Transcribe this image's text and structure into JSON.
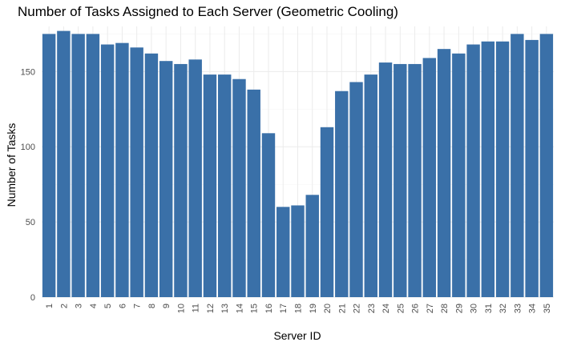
{
  "chart_data": {
    "type": "bar",
    "title": "Number of Tasks Assigned to Each Server (Geometric Cooling)",
    "xlabel": "Server ID",
    "ylabel": "Number of Tasks",
    "categories": [
      "1",
      "2",
      "3",
      "4",
      "5",
      "6",
      "7",
      "8",
      "9",
      "10",
      "11",
      "12",
      "13",
      "14",
      "15",
      "16",
      "17",
      "18",
      "19",
      "20",
      "21",
      "22",
      "23",
      "24",
      "25",
      "26",
      "27",
      "28",
      "29",
      "30",
      "31",
      "32",
      "33",
      "34",
      "35"
    ],
    "values": [
      175,
      177,
      175,
      175,
      168,
      169,
      166,
      162,
      157,
      155,
      158,
      148,
      148,
      145,
      138,
      109,
      60,
      61,
      68,
      113,
      137,
      143,
      148,
      156,
      155,
      155,
      159,
      165,
      162,
      168,
      170,
      170,
      175,
      171,
      175
    ],
    "ylim": [
      0,
      180
    ],
    "yticks": [
      0,
      50,
      100,
      150
    ],
    "bar_color": "#3A70A8",
    "grid": true
  }
}
